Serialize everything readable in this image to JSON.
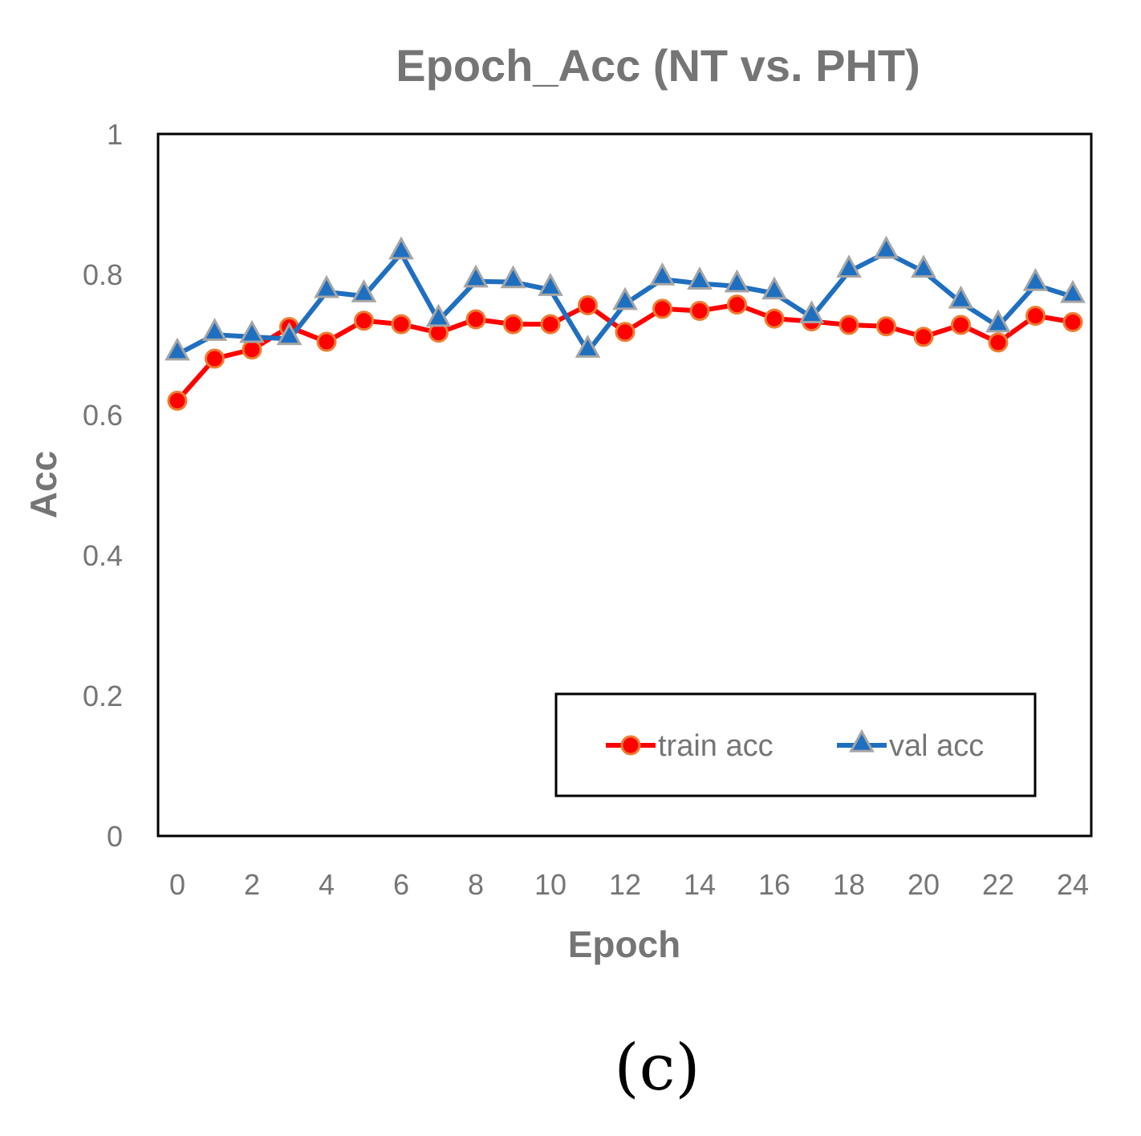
{
  "chart_data": {
    "type": "line",
    "title": "Epoch_Acc (NT vs. PHT)",
    "xlabel": "Epoch",
    "ylabel": "Acc",
    "x": [
      0,
      1,
      2,
      3,
      4,
      5,
      6,
      7,
      8,
      9,
      10,
      11,
      12,
      13,
      14,
      15,
      16,
      17,
      18,
      19,
      20,
      21,
      22,
      23,
      24
    ],
    "xlim": [
      0,
      24
    ],
    "ylim": [
      0,
      1
    ],
    "x_ticks": [
      "0",
      "2",
      "4",
      "6",
      "8",
      "10",
      "12",
      "14",
      "16",
      "18",
      "20",
      "22",
      "24"
    ],
    "x_tick_values": [
      0,
      2,
      4,
      6,
      8,
      10,
      12,
      14,
      16,
      18,
      20,
      22,
      24
    ],
    "y_ticks": [
      "0",
      "0.2",
      "0.4",
      "0.6",
      "0.8",
      "1"
    ],
    "y_tick_values": [
      0,
      0.2,
      0.4,
      0.6,
      0.8,
      1
    ],
    "grid": false,
    "legend_position": "bottom-right",
    "series": [
      {
        "name": "train acc",
        "marker": "circle",
        "color": "#ff0000",
        "marker_edge": "#ed7d31",
        "values": [
          0.62,
          0.68,
          0.693,
          0.725,
          0.704,
          0.734,
          0.729,
          0.717,
          0.736,
          0.729,
          0.729,
          0.756,
          0.718,
          0.751,
          0.748,
          0.757,
          0.737,
          0.733,
          0.728,
          0.726,
          0.711,
          0.728,
          0.703,
          0.741,
          0.732
        ]
      },
      {
        "name": "val acc",
        "marker": "triangle",
        "color": "#1f6fc0",
        "marker_fill": "#1f6fc0",
        "marker_edge": "#a5a5a5",
        "values": [
          0.686,
          0.714,
          0.711,
          0.708,
          0.775,
          0.769,
          0.83,
          0.734,
          0.79,
          0.789,
          0.778,
          0.69,
          0.758,
          0.793,
          0.787,
          0.783,
          0.773,
          0.739,
          0.804,
          0.831,
          0.804,
          0.76,
          0.726,
          0.785,
          0.768
        ]
      }
    ]
  },
  "caption": "(c)"
}
